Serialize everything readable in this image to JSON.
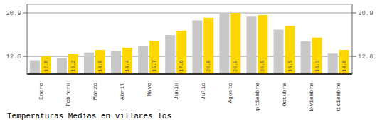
{
  "chart_data": {
    "type": "bar",
    "title": "Temperaturas Medias en villares los",
    "categories": [
      "Enero",
      "Febrero",
      "Marzo",
      "Abril",
      "Mayo",
      "Junio",
      "Julio",
      "Agosto",
      "Septiembre",
      "Octubre",
      "Noviembre",
      "Diciembre"
    ],
    "series": [
      {
        "color": "#C8C8C8",
        "values": [
          12.1,
          12.5,
          13.5,
          13.8,
          14.8,
          16.8,
          19.5,
          20.9,
          20.2,
          17.8,
          15.6,
          13.3
        ]
      },
      {
        "color": "#FFD700",
        "values": [
          12.8,
          13.2,
          14.0,
          14.4,
          15.7,
          17.6,
          20.0,
          20.9,
          20.5,
          18.5,
          16.3,
          14.0
        ],
        "data_labels": true,
        "value_labels": [
          "12.8",
          "13.2",
          "14.0",
          "14.4",
          "15.7",
          "17.6",
          "20.0",
          "20.9",
          "20.5",
          "18.5",
          "16.3",
          "14.0"
        ]
      }
    ],
    "ylim": [
      9.5,
      22.5
    ],
    "yticks": [
      12.8,
      20.9
    ],
    "grid": true
  }
}
